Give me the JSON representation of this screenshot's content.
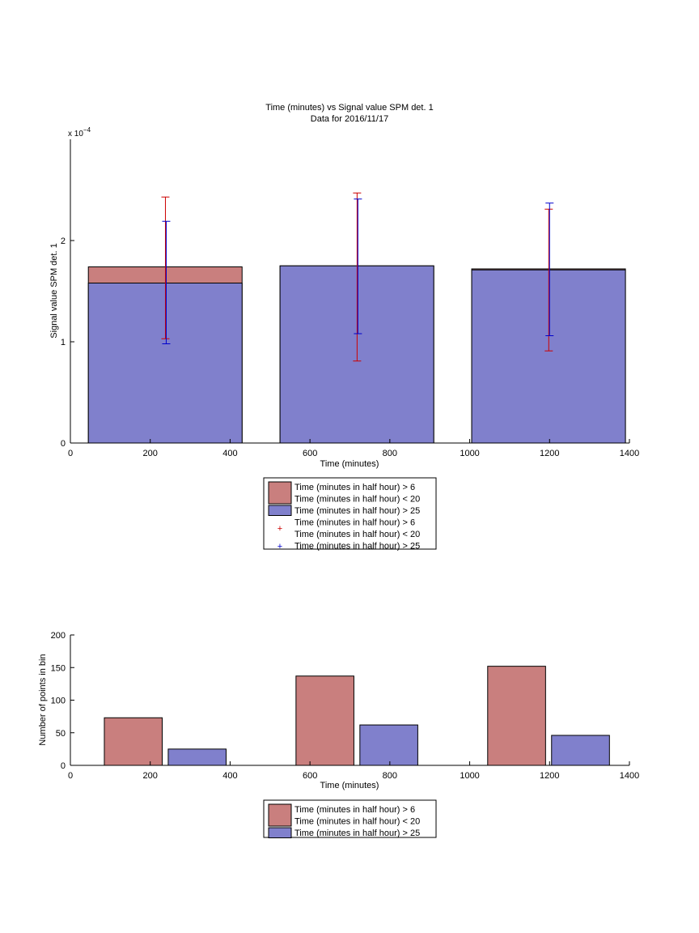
{
  "colors": {
    "red_bar": "#c97f7e",
    "blue_bar": "#8080cc",
    "red_err": "#cc0000",
    "blue_err": "#0000cc",
    "axis": "#000000"
  },
  "chart_data": [
    {
      "type": "bar",
      "title": "Time (minutes) vs Signal value SPM det. 1",
      "subtitle": "Data for 2016/11/17",
      "xlabel": "Time (minutes)",
      "ylabel": "Signal value SPM det. 1",
      "y_exponent_base": "x 10",
      "y_exponent_power": "−4",
      "xlim": [
        0,
        1400
      ],
      "ylim": [
        0,
        3
      ],
      "x_ticks": [
        0,
        200,
        400,
        600,
        800,
        1000,
        1200,
        1400
      ],
      "y_ticks": [
        0,
        1,
        2
      ],
      "bars": [
        {
          "x_start": 45,
          "x_end": 430,
          "series": [
            {
              "value": 1.74,
              "color": "red"
            },
            {
              "value": 1.58,
              "color": "blue"
            }
          ]
        },
        {
          "x_start": 525,
          "x_end": 910,
          "series": [
            {
              "value": 1.75,
              "color": "red"
            },
            {
              "value": 1.75,
              "color": "blue"
            }
          ]
        },
        {
          "x_start": 1005,
          "x_end": 1390,
          "series": [
            {
              "value": 1.72,
              "color": "red"
            },
            {
              "value": 1.71,
              "color": "blue"
            }
          ]
        }
      ],
      "error_bars": [
        {
          "x": 238,
          "low": 1.03,
          "high": 2.43,
          "color": "red"
        },
        {
          "x": 240,
          "low": 0.98,
          "high": 2.19,
          "color": "blue"
        },
        {
          "x": 718,
          "low": 0.81,
          "high": 2.47,
          "color": "red"
        },
        {
          "x": 720,
          "low": 1.08,
          "high": 2.41,
          "color": "blue"
        },
        {
          "x": 1198,
          "low": 0.91,
          "high": 2.31,
          "color": "red"
        },
        {
          "x": 1200,
          "low": 1.06,
          "high": 2.37,
          "color": "blue"
        }
      ],
      "legend": {
        "placement": "below",
        "entries": [
          {
            "kind": "patch",
            "color": "red",
            "lines": [
              "Time (minutes in half hour) > 6",
              "Time (minutes in half hour) < 20"
            ]
          },
          {
            "kind": "patch",
            "color": "blue",
            "lines": [
              "Time (minutes in half hour) > 25"
            ]
          },
          {
            "kind": "marker",
            "color": "red",
            "lines": [
              "Time (minutes in half hour) > 6",
              "Time (minutes in half hour) < 20"
            ]
          },
          {
            "kind": "marker",
            "color": "blue",
            "lines": [
              "Time (minutes in half hour) > 25"
            ]
          }
        ]
      }
    },
    {
      "type": "bar",
      "title": "",
      "xlabel": "Time (minutes)",
      "ylabel": "Number of points in bin",
      "xlim": [
        0,
        1400
      ],
      "ylim": [
        0,
        200
      ],
      "x_ticks": [
        0,
        200,
        400,
        600,
        800,
        1000,
        1200,
        1400
      ],
      "y_ticks": [
        0,
        50,
        100,
        150,
        200
      ],
      "bars": [
        {
          "x_start": 85,
          "x_end": 230,
          "value": 73,
          "color": "red"
        },
        {
          "x_start": 245,
          "x_end": 390,
          "value": 25,
          "color": "blue"
        },
        {
          "x_start": 565,
          "x_end": 710,
          "value": 137,
          "color": "red"
        },
        {
          "x_start": 725,
          "x_end": 870,
          "value": 62,
          "color": "blue"
        },
        {
          "x_start": 1045,
          "x_end": 1190,
          "value": 152,
          "color": "red"
        },
        {
          "x_start": 1205,
          "x_end": 1350,
          "value": 46,
          "color": "blue"
        }
      ],
      "legend": {
        "placement": "below",
        "entries": [
          {
            "kind": "patch",
            "color": "red",
            "lines": [
              "Time (minutes in half hour) > 6",
              "Time (minutes in half hour) < 20"
            ]
          },
          {
            "kind": "patch",
            "color": "blue",
            "lines": [
              "Time (minutes in half hour) > 25"
            ]
          }
        ]
      }
    }
  ]
}
